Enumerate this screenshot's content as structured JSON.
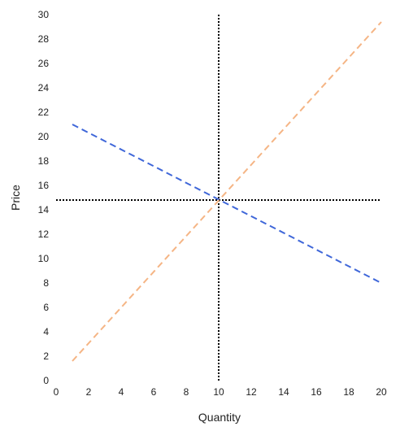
{
  "chart_data": {
    "type": "line",
    "title": "",
    "xlabel": "Quantity",
    "ylabel": "Price",
    "xlim": [
      0,
      20
    ],
    "ylim": [
      0,
      30
    ],
    "x_ticks": [
      "0",
      "2",
      "4",
      "6",
      "8",
      "10",
      "12",
      "14",
      "16",
      "18",
      "20"
    ],
    "y_ticks": [
      "0",
      "2",
      "4",
      "6",
      "8",
      "10",
      "12",
      "14",
      "16",
      "18",
      "20",
      "22",
      "24",
      "26",
      "28",
      "30"
    ],
    "grid": false,
    "legend": "none",
    "series": [
      {
        "color": "#3f67d9",
        "style": "dashed",
        "x": [
          1,
          20
        ],
        "y": [
          21.0,
          8.0
        ]
      },
      {
        "color": "#f5b585",
        "style": "dashed",
        "x": [
          1,
          20
        ],
        "y": [
          1.6,
          29.4
        ]
      }
    ],
    "reference_lines": [
      {
        "orientation": "vertical",
        "value": 10,
        "color": "#000000",
        "style": "dotted"
      },
      {
        "orientation": "horizontal",
        "value": 14.8,
        "color": "#000000",
        "style": "dotted"
      }
    ]
  }
}
